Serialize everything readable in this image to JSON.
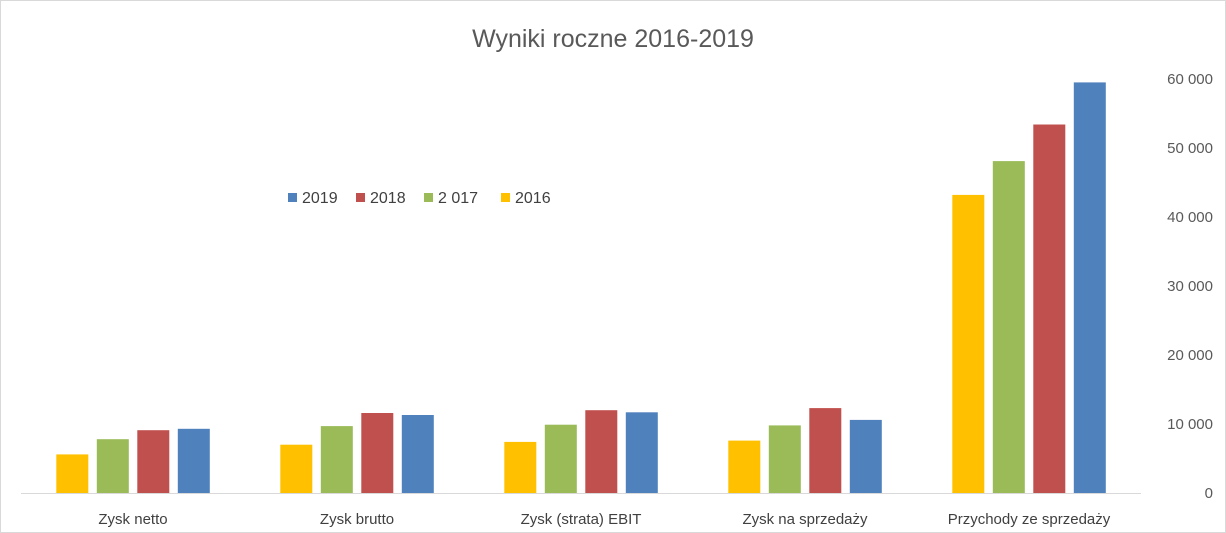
{
  "chart_data": {
    "type": "bar",
    "title": "Wyniki roczne 2016-2019",
    "xlabel": "",
    "ylabel": "",
    "categories": [
      "Zysk netto",
      "Zysk brutto",
      "Zysk (strata) EBIT",
      "Zysk na sprzedaży",
      "Przychody ze sprzedaży"
    ],
    "series": [
      {
        "name": "2016",
        "color": "#ffc000",
        "values": [
          5600,
          7000,
          7400,
          7600,
          43200
        ]
      },
      {
        "name": "2 017",
        "color": "#9bbb59",
        "values": [
          7800,
          9700,
          9900,
          9800,
          48100
        ]
      },
      {
        "name": "2018",
        "color": "#c0504d",
        "values": [
          9100,
          11600,
          12000,
          12300,
          53400
        ]
      },
      {
        "name": "2019",
        "color": "#4f81bd",
        "values": [
          9300,
          11300,
          11700,
          10600,
          59500
        ]
      }
    ],
    "legend_order": [
      "2019",
      "2018",
      "2 017",
      "2016"
    ],
    "ylim": [
      0,
      60000
    ],
    "yticks": [
      0,
      10000,
      20000,
      30000,
      40000,
      50000,
      60000
    ],
    "ytick_labels": [
      "0",
      "10 000",
      "20 000",
      "30 000",
      "40 000",
      "50 000",
      "60 000"
    ],
    "y_axis_position": "right",
    "grid": false,
    "legend_position": "top-left"
  }
}
